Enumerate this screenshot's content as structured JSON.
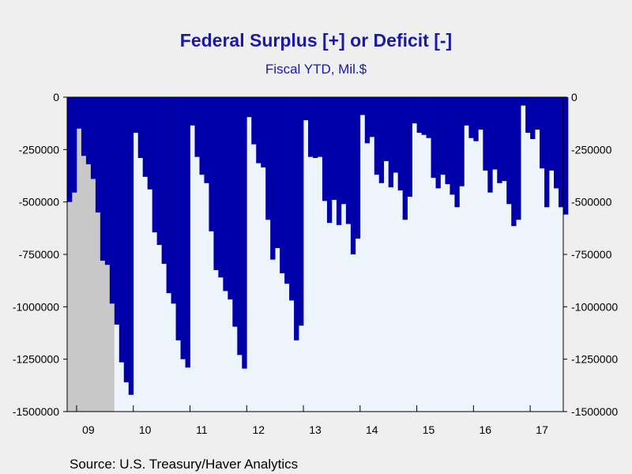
{
  "chart_data": {
    "type": "area",
    "title": "Federal Surplus [+] or Deficit [-]",
    "subtitle": "Fiscal YTD, Mil.$",
    "source": "Source:  U.S. Treasury/Haver Analytics",
    "ylim": [
      -1500000,
      0
    ],
    "y_ticks": [
      0,
      -250000,
      -500000,
      -750000,
      -1000000,
      -1250000,
      -1500000
    ],
    "y_tick_labels": [
      "0",
      "-250000",
      "-500000",
      "-750000",
      "-1000000",
      "-1250000",
      "-1500000"
    ],
    "x_labels": [
      "09",
      "10",
      "11",
      "12",
      "13",
      "14",
      "15",
      "16",
      "17"
    ],
    "x_label_months": [
      4,
      16,
      28,
      40,
      52,
      64,
      76,
      88,
      100
    ],
    "month_count": 105,
    "recession": {
      "label": "recession shading",
      "start_month": 0,
      "end_month": 10,
      "color": "#c8c8c8"
    },
    "series": [
      {
        "name": "",
        "color": "#0000a8",
        "values": [
          -500000,
          -455000,
          -150000,
          -280000,
          -320000,
          -390000,
          -550000,
          -780000,
          -800000,
          -985000,
          -1085000,
          -1265000,
          -1360000,
          -1420000,
          -170000,
          -290000,
          -380000,
          -440000,
          -645000,
          -705000,
          -795000,
          -935000,
          -985000,
          -1160000,
          -1250000,
          -1290000,
          -135000,
          -285000,
          -370000,
          -410000,
          -640000,
          -825000,
          -860000,
          -925000,
          -965000,
          -1095000,
          -1230000,
          -1295000,
          -95000,
          -225000,
          -315000,
          -335000,
          -585000,
          -775000,
          -720000,
          -840000,
          -890000,
          -970000,
          -1160000,
          -1090000,
          -110000,
          -285000,
          -290000,
          -285000,
          -495000,
          -600000,
          -490000,
          -610000,
          -510000,
          -605000,
          -750000,
          -675000,
          -85000,
          -220000,
          -190000,
          -370000,
          -410000,
          -305000,
          -430000,
          -360000,
          -445000,
          -585000,
          -475000,
          -125000,
          -170000,
          -180000,
          -195000,
          -385000,
          -435000,
          -370000,
          -415000,
          -465000,
          -525000,
          -425000,
          -135000,
          -195000,
          -210000,
          -155000,
          -350000,
          -455000,
          -345000,
          -410000,
          -400000,
          -510000,
          -615000,
          -585000,
          -40000,
          -170000,
          -200000,
          -155000,
          -340000,
          -525000,
          -350000,
          -435000,
          -525000,
          -560000
        ]
      }
    ]
  }
}
